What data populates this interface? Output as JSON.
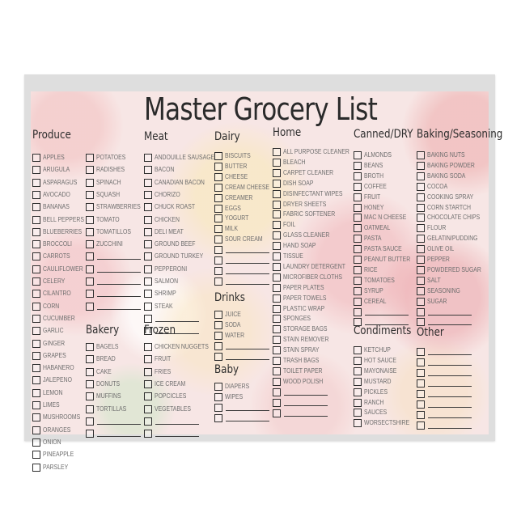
{
  "title": "Master Grocery List",
  "sections": {
    "produce": {
      "header": "Produce",
      "items": [
        "APPLES",
        "ARUGULA",
        "ASPARAGUS",
        "AVOCADO",
        "BANANAS",
        "BELL PEPPERS",
        "BLUEBERRIES",
        "BROCCOLI",
        "CARROTS",
        "CAULIFLOWER",
        "CELERY",
        "CILANTRO",
        "CORN",
        "CUCUMBER",
        "GARLIC",
        "GINGER",
        "GRAPES",
        "HABANERO",
        "JALEPENO",
        "LEMON",
        "LIMES",
        "MUSHROOMS",
        "ORANGES",
        "ONION",
        "PINEAPPLE",
        "PARSLEY"
      ],
      "blank_lines": 0
    },
    "produce_cont": {
      "header": "",
      "items": [
        "POTATOES",
        "RADISHES",
        "SPINACH",
        "SQUASH",
        "STRAWBERRIES",
        "TOMATO",
        "TOMATILLOS",
        "ZUCCHINI"
      ],
      "blank_lines": 5
    },
    "bakery": {
      "header": "Bakery",
      "items": [
        "BAGELS",
        "BREAD",
        "CAKE",
        "DONUTS",
        "MUFFINS",
        "TORTILLAS"
      ],
      "blank_lines": 2
    },
    "meat": {
      "header": "Meat",
      "items": [
        "ANDOUILLE SAUSAGE",
        "BACON",
        "CANADIAN BACON",
        "CHORIZO",
        "CHUCK ROAST",
        "CHICKEN",
        "DELI MEAT",
        "GROUND BEEF",
        "GROUND TURKEY",
        "PEPPERONI",
        "SALMON",
        "SHRIMP",
        "STEAK"
      ],
      "blank_lines": 2
    },
    "frozen": {
      "header": "Frozen",
      "items": [
        "CHICKEN NUGGETS",
        "FRUIT",
        "FRIES",
        "ICE CREAM",
        "POPCICLES",
        "VEGETABLES"
      ],
      "blank_lines": 2
    },
    "dairy": {
      "header": "Dairy",
      "items": [
        "BISCUITS",
        "BUTTER",
        "CHEESE",
        "CREAM CHEESE",
        "CREAMER",
        "EGGS",
        "YOGURT",
        "MILK",
        "SOUR CREAM"
      ],
      "blank_lines": 4
    },
    "drinks": {
      "header": "Drinks",
      "items": [
        "JUICE",
        "SODA",
        "WATER"
      ],
      "blank_lines": 2
    },
    "baby": {
      "header": "Baby",
      "items": [
        "DIAPERS",
        "WIPES"
      ],
      "blank_lines": 2
    },
    "home": {
      "header": "Home",
      "items": [
        "ALL PURPOSE CLEANER",
        "BLEACH",
        "CARPET CLEANER",
        "DISH SOAP",
        "DISINFECTANT WIPES",
        "DRYER SHEETS",
        "FABRIC SOFTENER",
        "FOIL",
        "GLASS CLEANER",
        "HAND SOAP",
        "TISSUE",
        "LAUNDRY DETERGENT",
        "MICROFIBER CLOTHS",
        "PAPER PLATES",
        "PAPER TOWELS",
        "PLASTIC WRAP",
        "SPONGES",
        "STORAGE BAGS",
        "STAIN REMOVER",
        "STAIN SPRAY",
        "TRASH BAGS",
        "TOILET PAPER",
        "WOOD POLISH"
      ],
      "blank_lines": 3
    },
    "canned": {
      "header": "Canned/DRY",
      "items": [
        "ALMONDS",
        "BEANS",
        "BROTH",
        "COFFEE",
        "FRUIT",
        "HONEY",
        "MAC N CHEESE",
        "OATMEAL",
        "PASTA",
        "PASTA SAUCE",
        "PEANUT BUTTER",
        "RICE",
        "TOMATOES",
        "SYRUP",
        "CEREAL"
      ],
      "blank_lines": 2
    },
    "condiments": {
      "header": "Condiments",
      "items": [
        "KETCHUP",
        "HOT SAUCE",
        "MAYONAISE",
        "MUSTARD",
        "PICKLES",
        "RANCH",
        "SAUCES",
        "WORSECTSHIRE"
      ],
      "blank_lines": 0
    },
    "baking": {
      "header": "Baking/Seasoning",
      "items": [
        "BAKING NUTS",
        "BAKING POWDER",
        "BAKING SODA",
        "COCOA",
        "COOKING SPRAY",
        "CORN STARTCH",
        "CHOCOLATE CHIPS",
        "FLOUR",
        "GELATIN/PUDDING",
        "OLIVE OIL",
        "PEPPER",
        "POWDERED SUGAR",
        "SALT",
        "SEASONING",
        "SUGAR"
      ],
      "blank_lines": 2
    },
    "other": {
      "header": "Other",
      "items": [],
      "blank_lines": 8
    }
  }
}
